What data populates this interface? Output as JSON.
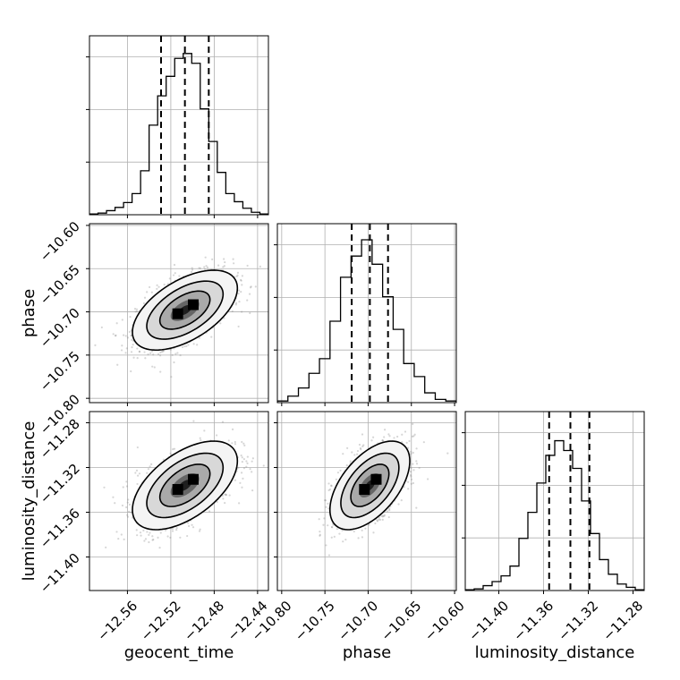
{
  "chart_data": {
    "type": "corner",
    "title": "",
    "grid": true,
    "parameters": [
      {
        "name": "geocent_time",
        "label": "geocent_time",
        "range": [
          -12.595,
          -12.43
        ],
        "ticks": [
          -12.56,
          -12.52,
          -12.48,
          -12.44
        ],
        "tick_labels": [
          "−12.56",
          "−12.52",
          "−12.48",
          "−12.44"
        ],
        "quantiles": [
          -12.529,
          -12.507,
          -12.485
        ],
        "histogram": [
          0.005,
          0.01,
          0.025,
          0.045,
          0.075,
          0.13,
          0.27,
          0.55,
          0.73,
          0.85,
          0.96,
          0.99,
          0.93,
          0.65,
          0.45,
          0.26,
          0.13,
          0.08,
          0.04,
          0.015,
          0.005
        ]
      },
      {
        "name": "phase",
        "label": "phase",
        "range": [
          -10.805,
          -10.598
        ],
        "ticks": [
          -10.8,
          -10.75,
          -10.7,
          -10.65,
          -10.6
        ],
        "tick_labels": [
          "−10.80",
          "−10.75",
          "−10.70",
          "−10.65",
          "−10.60"
        ],
        "quantiles": [
          -10.719,
          -10.698,
          -10.677
        ],
        "histogram": [
          0.01,
          0.04,
          0.09,
          0.18,
          0.27,
          0.5,
          0.77,
          0.9,
          1.0,
          0.85,
          0.65,
          0.45,
          0.24,
          0.16,
          0.06,
          0.02,
          0.01
        ]
      },
      {
        "name": "luminosity_distance",
        "label": "luminosity_distance",
        "range": [
          -11.43,
          -11.27
        ],
        "ticks": [
          -11.4,
          -11.36,
          -11.32,
          -11.28
        ],
        "tick_labels": [
          "−11.40",
          "−11.36",
          "−11.32",
          "−11.28"
        ],
        "quantiles": [
          -11.355,
          -11.336,
          -11.319
        ],
        "histogram": [
          0.005,
          0.01,
          0.03,
          0.055,
          0.09,
          0.15,
          0.32,
          0.48,
          0.66,
          0.83,
          0.92,
          0.86,
          0.75,
          0.55,
          0.35,
          0.19,
          0.1,
          0.04,
          0.02,
          0.005
        ]
      }
    ],
    "pairs": [
      {
        "x": "geocent_time",
        "y": "phase",
        "mean": [
          -12.507,
          -10.698
        ],
        "sd": [
          0.022,
          0.021
        ],
        "rho": 0.55
      },
      {
        "x": "geocent_time",
        "y": "luminosity_distance",
        "mean": [
          -12.507,
          -11.336
        ],
        "sd": [
          0.022,
          0.018
        ],
        "rho": 0.55
      },
      {
        "x": "phase",
        "y": "luminosity_distance",
        "mean": [
          -10.698,
          -11.336
        ],
        "sd": [
          0.021,
          0.018
        ],
        "rho": 0.55
      }
    ]
  }
}
